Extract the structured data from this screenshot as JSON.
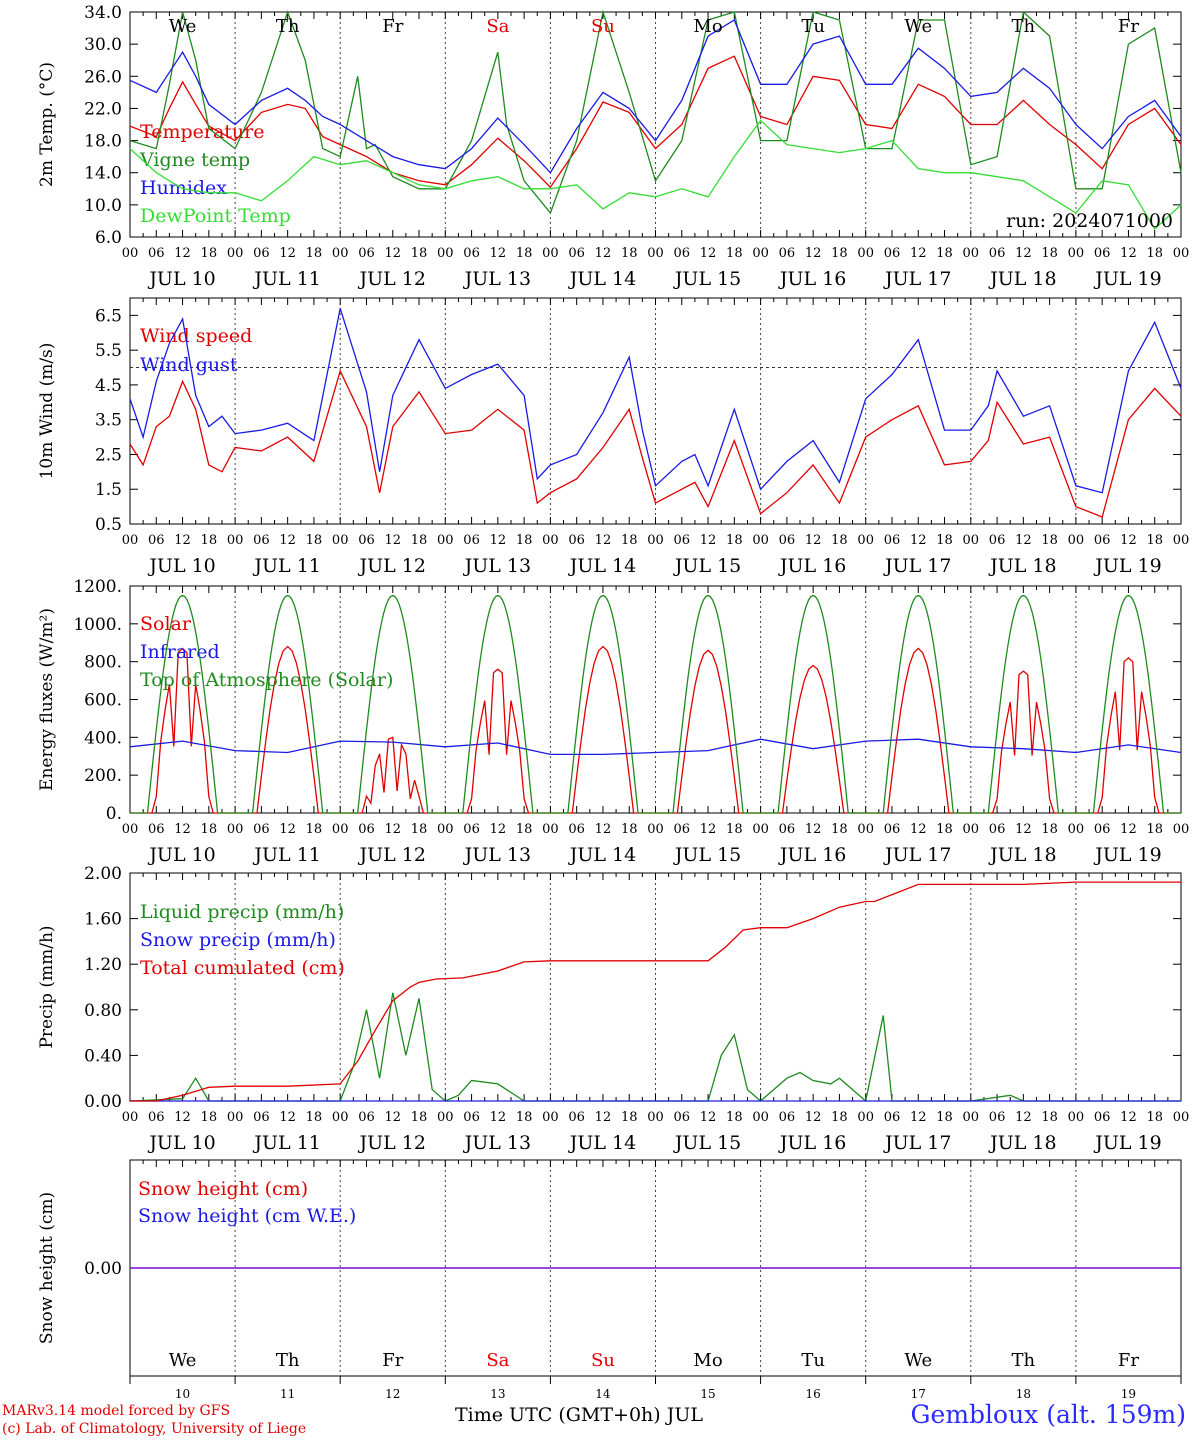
{
  "footer": {
    "model_line": "MARv3.14 model forced by GFS",
    "credit_line": "(c) Lab. of Climatology, University of Liege",
    "time_label": "Time UTC (GMT+0h) JUL",
    "station": "Gembloux (alt. 159m)"
  },
  "colors": {
    "red": "#e00000",
    "green": "#1f8a1f",
    "blue": "#1a1ae6",
    "lightgreen": "#33dd33",
    "purple": "#8a2be2",
    "weekend": "#e00000"
  },
  "days": {
    "dates": [
      "JUL 10",
      "JUL 11",
      "JUL 12",
      "JUL 13",
      "JUL 14",
      "JUL 15",
      "JUL 16",
      "JUL 17",
      "JUL 18",
      "JUL 19"
    ],
    "weekday": [
      "We",
      "Th",
      "Fr",
      "Sa",
      "Su",
      "Mo",
      "Tu",
      "We",
      "Th",
      "Fr"
    ],
    "weekend": [
      false,
      false,
      false,
      true,
      true,
      false,
      false,
      false,
      false,
      false
    ],
    "numbers": [
      "10",
      "11",
      "12",
      "13",
      "14",
      "15",
      "16",
      "17",
      "18",
      "19"
    ],
    "hours": [
      "00",
      "06",
      "12",
      "18"
    ],
    "final_hour": "00"
  },
  "chart_data": [
    {
      "id": "temp",
      "type": "line",
      "ylabel": "2m Temp. (°C)",
      "ylim": [
        6,
        34
      ],
      "yticks": [
        "6.0",
        "10.0",
        "14.0",
        "18.0",
        "22.0",
        "26.0",
        "30.0",
        "34.0"
      ],
      "annotation": "run: 2024071000",
      "x_unit": "hours since Jul 10 00 UTC",
      "xlim": [
        0,
        240
      ],
      "series": [
        {
          "name": "Temperature",
          "color": "red",
          "x": [
            0,
            6,
            9,
            12,
            15,
            18,
            24,
            30,
            36,
            40,
            44,
            48,
            54,
            60,
            66,
            72,
            78,
            84,
            90,
            96,
            102,
            108,
            114,
            120,
            126,
            132,
            138,
            144,
            150,
            156,
            162,
            168,
            174,
            180,
            186,
            192,
            198,
            204,
            210,
            216,
            222,
            228,
            234,
            240
          ],
          "y": [
            19.8,
            18.5,
            22.0,
            25.3,
            22.5,
            19.8,
            18.0,
            21.5,
            22.5,
            22.0,
            18.5,
            17.5,
            16.0,
            14.0,
            13.0,
            12.5,
            15.0,
            18.3,
            15.5,
            12.2,
            17.0,
            22.8,
            21.5,
            17.0,
            20.0,
            27.0,
            28.5,
            21.0,
            20.0,
            26.0,
            25.5,
            20.0,
            19.5,
            25.0,
            23.5,
            20.0,
            20.0,
            23.0,
            20.0,
            17.5,
            14.5,
            20.0,
            22.0,
            17.5
          ]
        },
        {
          "name": "Vigne temp",
          "color": "green",
          "x": [
            0,
            6,
            9,
            12,
            15,
            18,
            24,
            30,
            36,
            40,
            44,
            48,
            52,
            54,
            56,
            60,
            66,
            72,
            78,
            84,
            86,
            90,
            96,
            102,
            108,
            114,
            120,
            126,
            132,
            138,
            144,
            150,
            156,
            162,
            168,
            174,
            180,
            186,
            192,
            198,
            204,
            210,
            216,
            222,
            228,
            234,
            240
          ],
          "y": [
            18.0,
            17.0,
            25.0,
            34.0,
            28.0,
            19.5,
            17.0,
            24.0,
            34.0,
            28.0,
            17.0,
            16.0,
            26.0,
            17.0,
            17.5,
            13.5,
            12.0,
            12.0,
            18.0,
            29.0,
            20.0,
            13.0,
            9.0,
            18.0,
            34.0,
            24.0,
            13.0,
            18.0,
            33.0,
            34.0,
            18.0,
            18.0,
            34.0,
            33.0,
            17.0,
            17.0,
            33.0,
            33.0,
            15.0,
            16.0,
            34.0,
            31.0,
            12.0,
            12.0,
            30.0,
            32.0,
            14.0
          ]
        },
        {
          "name": "Humidex",
          "color": "blue",
          "x": [
            0,
            6,
            9,
            12,
            15,
            18,
            24,
            30,
            36,
            40,
            44,
            48,
            54,
            60,
            66,
            72,
            78,
            84,
            90,
            96,
            102,
            108,
            114,
            120,
            126,
            132,
            138,
            144,
            150,
            156,
            162,
            168,
            174,
            180,
            186,
            192,
            198,
            204,
            210,
            216,
            222,
            228,
            234,
            240
          ],
          "y": [
            25.5,
            24.0,
            26.5,
            29.0,
            26.0,
            22.5,
            20.0,
            23.0,
            24.5,
            23.0,
            21.0,
            20.0,
            18.0,
            16.0,
            15.0,
            14.5,
            17.0,
            20.8,
            17.5,
            14.0,
            19.5,
            24.0,
            22.0,
            18.0,
            23.0,
            31.0,
            33.0,
            25.0,
            25.0,
            30.0,
            31.0,
            25.0,
            25.0,
            29.5,
            27.0,
            23.5,
            24.0,
            27.0,
            24.5,
            20.0,
            17.0,
            21.0,
            23.0,
            18.5
          ]
        },
        {
          "name": "DewPoint Temp",
          "color": "lightgreen",
          "x": [
            0,
            6,
            12,
            18,
            24,
            30,
            36,
            42,
            48,
            54,
            60,
            66,
            72,
            78,
            84,
            90,
            96,
            102,
            108,
            114,
            120,
            126,
            132,
            138,
            144,
            150,
            156,
            162,
            168,
            174,
            180,
            186,
            192,
            198,
            204,
            210,
            216,
            222,
            228,
            234,
            240
          ],
          "y": [
            17.0,
            14.0,
            12.0,
            11.5,
            11.5,
            10.5,
            13.0,
            16.0,
            15.0,
            15.5,
            14.0,
            12.5,
            12.0,
            13.0,
            13.5,
            12.0,
            12.0,
            12.5,
            9.5,
            11.5,
            11.0,
            12.0,
            11.0,
            16.0,
            20.5,
            17.5,
            17.0,
            16.5,
            17.0,
            18.0,
            14.5,
            14.0,
            14.0,
            13.5,
            13.0,
            11.0,
            9.0,
            13.0,
            12.5,
            7.0,
            10.0
          ]
        }
      ]
    },
    {
      "id": "wind",
      "type": "line",
      "ylabel": "10m Wind (m/s)",
      "ylim": [
        0.5,
        7.0
      ],
      "yticks": [
        "0.5",
        "1.5",
        "2.5",
        "3.5",
        "4.5",
        "5.5",
        "6.5"
      ],
      "reference_y": 5.0,
      "x_unit": "hours since Jul 10 00 UTC",
      "xlim": [
        0,
        240
      ],
      "series": [
        {
          "name": "Wind speed",
          "color": "red",
          "x": [
            0,
            3,
            6,
            9,
            12,
            15,
            18,
            21,
            24,
            30,
            36,
            42,
            48,
            54,
            57,
            60,
            66,
            72,
            78,
            84,
            90,
            93,
            96,
            102,
            108,
            114,
            117,
            120,
            126,
            129,
            132,
            138,
            144,
            150,
            156,
            162,
            168,
            174,
            180,
            186,
            192,
            196,
            198,
            204,
            210,
            216,
            222,
            228,
            234,
            240
          ],
          "y": [
            2.8,
            2.2,
            3.3,
            3.6,
            4.6,
            3.8,
            2.2,
            2.0,
            2.7,
            2.6,
            3.0,
            2.3,
            4.9,
            3.3,
            1.4,
            3.3,
            4.3,
            3.1,
            3.2,
            3.8,
            3.2,
            1.1,
            1.4,
            1.8,
            2.7,
            3.8,
            2.4,
            1.1,
            1.5,
            1.7,
            1.0,
            2.9,
            0.8,
            1.4,
            2.2,
            1.1,
            3.0,
            3.5,
            3.9,
            2.2,
            2.3,
            2.9,
            4.0,
            2.8,
            3.0,
            1.0,
            0.7,
            3.5,
            4.4,
            3.6
          ]
        },
        {
          "name": "Wind gust",
          "color": "blue",
          "x": [
            0,
            3,
            6,
            9,
            12,
            15,
            18,
            21,
            24,
            30,
            36,
            42,
            48,
            54,
            57,
            60,
            66,
            72,
            78,
            84,
            90,
            93,
            96,
            102,
            108,
            114,
            117,
            120,
            126,
            129,
            132,
            138,
            144,
            150,
            156,
            162,
            168,
            174,
            180,
            186,
            192,
            196,
            198,
            204,
            210,
            216,
            222,
            228,
            234,
            240
          ],
          "y": [
            4.1,
            3.0,
            4.6,
            5.7,
            6.4,
            4.2,
            3.3,
            3.6,
            3.1,
            3.2,
            3.4,
            2.9,
            6.7,
            4.3,
            2.0,
            4.2,
            5.8,
            4.4,
            4.8,
            5.1,
            4.2,
            1.8,
            2.2,
            2.5,
            3.7,
            5.3,
            3.2,
            1.6,
            2.3,
            2.5,
            1.6,
            3.8,
            1.5,
            2.3,
            2.9,
            1.7,
            4.1,
            4.8,
            5.8,
            3.2,
            3.2,
            3.9,
            4.9,
            3.6,
            3.9,
            1.6,
            1.4,
            4.9,
            6.3,
            4.4
          ]
        }
      ]
    },
    {
      "id": "energy",
      "type": "line",
      "ylabel": "Energy fluxes (W/m²)",
      "ylim": [
        0,
        1200
      ],
      "yticks": [
        "0.",
        "200.",
        "400.",
        "600.",
        "800.",
        "1000.",
        "1200."
      ],
      "x_unit": "hours since Jul 10 00 UTC",
      "xlim": [
        0,
        240
      ],
      "series": [
        {
          "name": "Solar",
          "color": "red",
          "peak_by_day": [
            870,
            880,
            400,
            760,
            880,
            860,
            780,
            870,
            750,
            820
          ]
        },
        {
          "name": "Infrared",
          "color": "blue",
          "x": [
            0,
            12,
            24,
            36,
            48,
            60,
            72,
            84,
            96,
            108,
            120,
            132,
            144,
            156,
            168,
            180,
            192,
            204,
            216,
            228,
            240
          ],
          "y": [
            350,
            380,
            330,
            320,
            380,
            375,
            350,
            370,
            310,
            310,
            320,
            330,
            390,
            340,
            380,
            390,
            350,
            340,
            320,
            360,
            320
          ]
        },
        {
          "name": "Top of Atmosphere (Solar)",
          "color": "green",
          "daily_peak": 1150,
          "sunrise_hour": 4,
          "sunset_hour": 20
        }
      ]
    },
    {
      "id": "precip",
      "type": "line",
      "ylabel": "Precip (mm/h)",
      "ylim": [
        0,
        2.0
      ],
      "yticks": [
        "0.00",
        "0.40",
        "0.80",
        "1.20",
        "1.60",
        "2.00"
      ],
      "x_unit": "hours since Jul 10 00 UTC",
      "xlim": [
        0,
        240
      ],
      "series": [
        {
          "name": "Liquid precip (mm/h)",
          "color": "green",
          "x": [
            0,
            12,
            15,
            18,
            48,
            51,
            54,
            57,
            60,
            63,
            66,
            69,
            72,
            75,
            78,
            84,
            90,
            96,
            108,
            132,
            135,
            138,
            141,
            144,
            150,
            153,
            156,
            160,
            162,
            168,
            172,
            174,
            180,
            186,
            192,
            201,
            204,
            240
          ],
          "y": [
            0,
            0.02,
            0.2,
            0,
            0,
            0.3,
            0.8,
            0.2,
            0.95,
            0.4,
            0.9,
            0.1,
            0,
            0.05,
            0.18,
            0.15,
            0,
            0,
            0,
            0,
            0.4,
            0.58,
            0.1,
            0,
            0.2,
            0.25,
            0.18,
            0.15,
            0.2,
            0,
            0.75,
            0,
            0,
            0,
            0,
            0.05,
            0,
            0
          ]
        },
        {
          "name": "Snow precip (mm/h)",
          "color": "blue",
          "x": [
            0,
            240
          ],
          "y": [
            0,
            0
          ]
        },
        {
          "name": "Total cumulated (cm)",
          "color": "red",
          "x": [
            0,
            6,
            12,
            18,
            24,
            36,
            48,
            52,
            56,
            60,
            64,
            66,
            70,
            76,
            84,
            90,
            96,
            108,
            120,
            132,
            136,
            140,
            144,
            150,
            156,
            162,
            168,
            170,
            180,
            192,
            204,
            216,
            228,
            240
          ],
          "y": [
            0,
            0,
            0.05,
            0.12,
            0.13,
            0.13,
            0.15,
            0.35,
            0.62,
            0.88,
            1.0,
            1.04,
            1.07,
            1.08,
            1.14,
            1.22,
            1.23,
            1.23,
            1.23,
            1.23,
            1.35,
            1.5,
            1.52,
            1.52,
            1.6,
            1.7,
            1.75,
            1.75,
            1.9,
            1.9,
            1.9,
            1.92,
            1.92,
            1.92
          ]
        }
      ]
    },
    {
      "id": "snow",
      "type": "line",
      "ylabel": "Snow height (cm)",
      "ylim": [
        -1,
        1
      ],
      "yticks": [
        "0.00"
      ],
      "x_unit": "hours since Jul 10 00 UTC",
      "xlim": [
        0,
        240
      ],
      "series": [
        {
          "name": "Snow height (cm)",
          "color": "red",
          "x": [
            0,
            240
          ],
          "y": [
            0,
            0
          ]
        },
        {
          "name": "Snow height (cm W.E.)",
          "color": "blue",
          "x": [
            0,
            240
          ],
          "y": [
            0,
            0
          ]
        }
      ]
    }
  ]
}
